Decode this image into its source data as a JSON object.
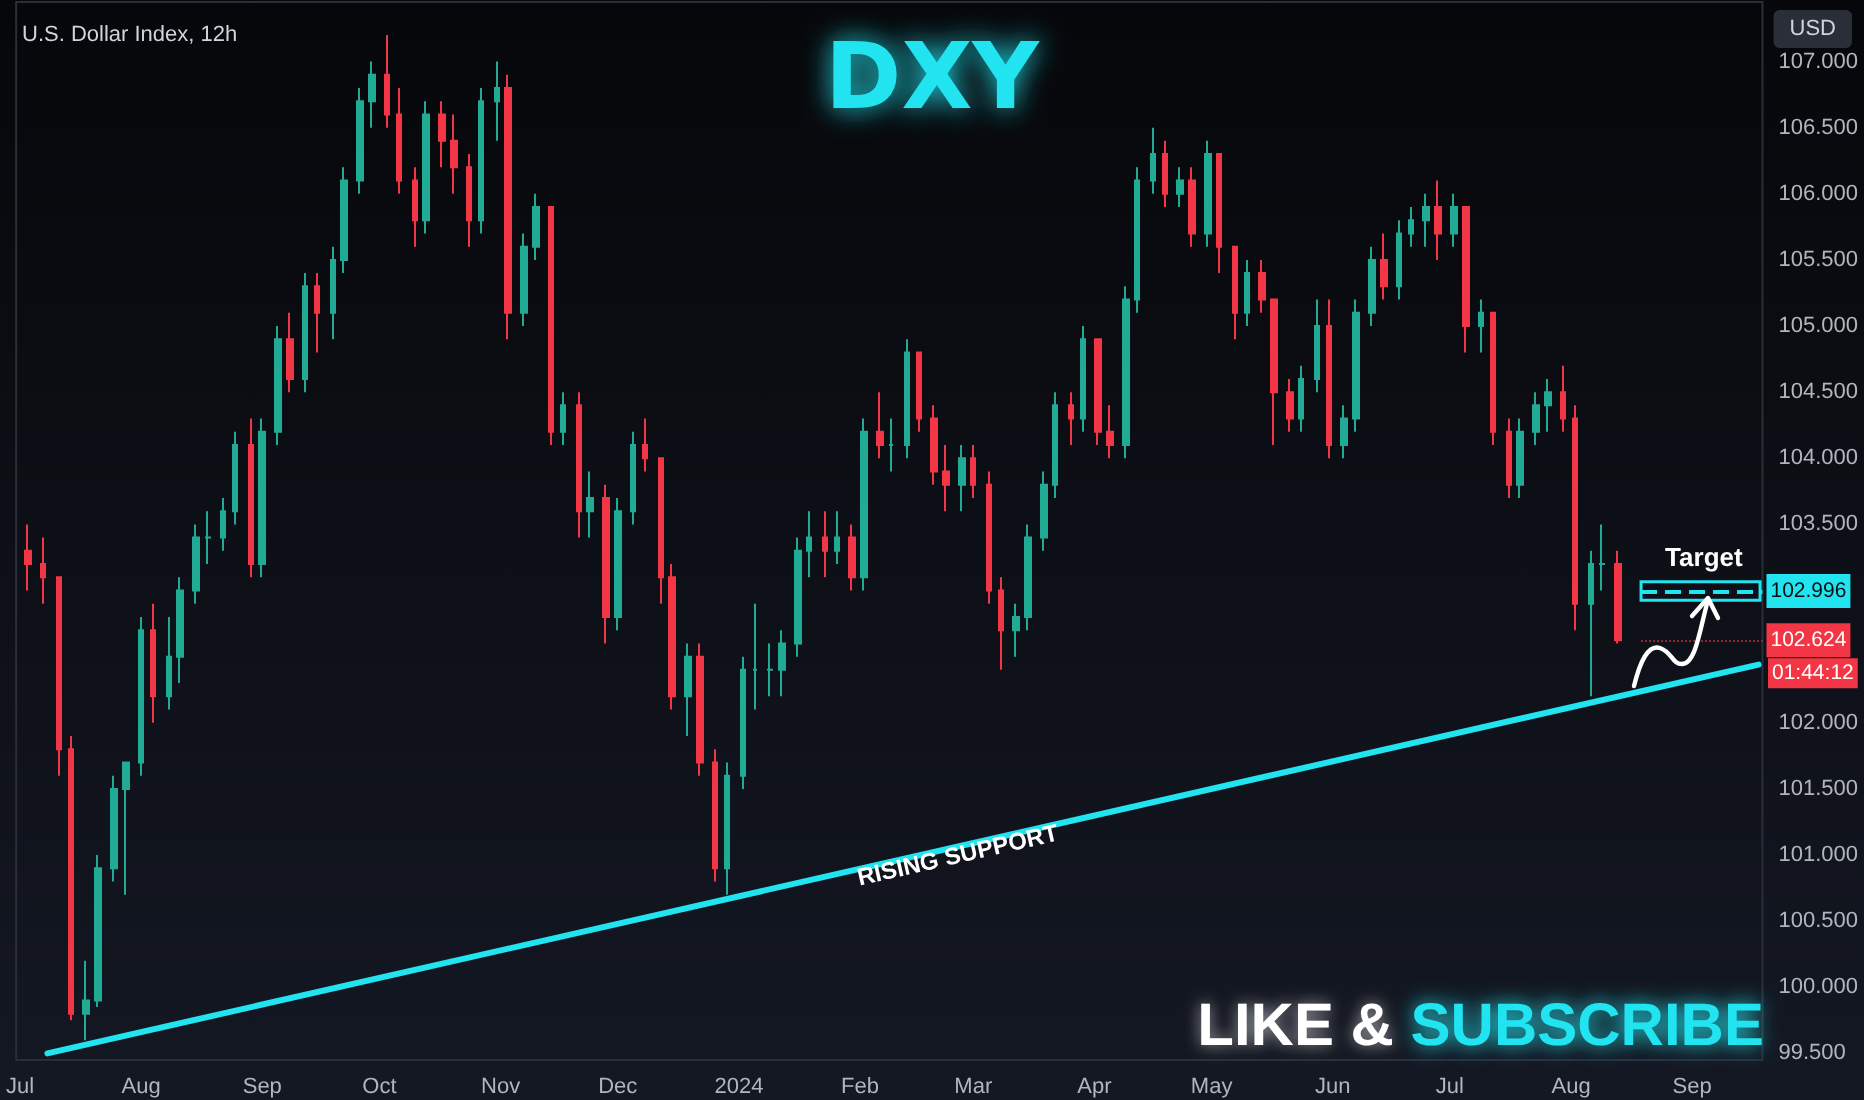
{
  "chart_data": {
    "type": "candlestick",
    "title": "DXY",
    "subtitle": "U.S. Dollar Index, 12h",
    "colors": [
      "#f23645",
      "#f23645",
      "#f23645",
      "#f23645",
      "#22ab94",
      "#22ab94",
      "#22ab94",
      "#22ab94",
      "#22ab94",
      "#f23645",
      "#22ab94",
      "#22ab94",
      "#22ab94",
      "#22ab94",
      "#22ab94",
      "#22ab94",
      "#f23645",
      "#22ab94",
      "#22ab94",
      "#f23645",
      "#22ab94",
      "#f23645",
      "#22ab94",
      "#22ab94",
      "#22ab94",
      "#22ab94",
      "#f23645",
      "#f23645",
      "#f23645",
      "#22ab94",
      "#f23645",
      "#f23645",
      "#f23645",
      "#22ab94",
      "#22ab94",
      "#f23645",
      "#22ab94",
      "#22ab94",
      "#f23645",
      "#22ab94",
      "#f23645",
      "#22ab94",
      "#f23645",
      "#22ab94",
      "#22ab94",
      "#f23645",
      "#f23645",
      "#f23645",
      "#22ab94",
      "#f23645",
      "#f23645",
      "#22ab94",
      "#22ab94",
      "#22ab94",
      "#22ab94",
      "#22ab94",
      "#22ab94",
      "#22ab94",
      "#f23645",
      "#22ab94",
      "#f23645",
      "#22ab94",
      "#f23645",
      "#22ab94",
      "#22ab94",
      "#f23645",
      "#f23645",
      "#f23645",
      "#22ab94",
      "#f23645",
      "#f23645",
      "#f23645",
      "#22ab94",
      "#22ab94",
      "#22ab94",
      "#22ab94",
      "#f23645",
      "#22ab94",
      "#f23645",
      "#f23645",
      "#22ab94",
      "#22ab94",
      "#22ab94",
      "#f23645",
      "#22ab94",
      "#f23645",
      "#22ab94",
      "#f23645",
      "#f23645",
      "#22ab94",
      "#f23645",
      "#f23645",
      "#f23645",
      "#22ab94",
      "#22ab94",
      "#f23645",
      "#22ab94",
      "#22ab94",
      "#22ab94",
      "#f23645",
      "#22ab94",
      "#22ab94",
      "#22ab94",
      "#f23645",
      "#22ab94",
      "#f23645",
      "#22ab94",
      "#f23645",
      "#f23645",
      "#22ab94",
      "#22ab94",
      "#22ab94",
      "#f23645",
      "#f23645",
      "#22ab94",
      "#22ab94",
      "#f23645"
    ],
    "x": [
      "2023-07-03",
      "2023-07-07",
      "2023-07-11",
      "2023-07-14",
      "2023-07-18",
      "2023-07-21",
      "2023-07-25",
      "2023-07-28",
      "2023-08-01",
      "2023-08-04",
      "2023-08-08",
      "2023-08-11",
      "2023-08-15",
      "2023-08-18",
      "2023-08-22",
      "2023-08-25",
      "2023-08-29",
      "2023-09-01",
      "2023-09-05",
      "2023-09-08",
      "2023-09-12",
      "2023-09-15",
      "2023-09-19",
      "2023-09-22",
      "2023-09-26",
      "2023-09-29",
      "2023-10-03",
      "2023-10-06",
      "2023-10-10",
      "2023-10-13",
      "2023-10-17",
      "2023-10-20",
      "2023-10-24",
      "2023-10-27",
      "2023-10-31",
      "2023-11-03",
      "2023-11-07",
      "2023-11-10",
      "2023-11-14",
      "2023-11-17",
      "2023-11-21",
      "2023-11-24",
      "2023-11-28",
      "2023-12-01",
      "2023-12-05",
      "2023-12-08",
      "2023-12-12",
      "2023-12-15",
      "2023-12-19",
      "2023-12-22",
      "2023-12-26",
      "2023-12-29",
      "2024-01-02",
      "2024-01-05",
      "2024-01-09",
      "2024-01-12",
      "2024-01-16",
      "2024-01-19",
      "2024-01-23",
      "2024-01-26",
      "2024-01-30",
      "2024-02-02",
      "2024-02-06",
      "2024-02-09",
      "2024-02-13",
      "2024-02-16",
      "2024-02-20",
      "2024-02-23",
      "2024-02-27",
      "2024-03-01",
      "2024-03-05",
      "2024-03-08",
      "2024-03-12",
      "2024-03-15",
      "2024-03-19",
      "2024-03-22",
      "2024-03-26",
      "2024-03-29",
      "2024-04-02",
      "2024-04-05",
      "2024-04-09",
      "2024-04-12",
      "2024-04-16",
      "2024-04-19",
      "2024-04-23",
      "2024-04-26",
      "2024-04-30",
      "2024-05-03",
      "2024-05-07",
      "2024-05-10",
      "2024-05-14",
      "2024-05-17",
      "2024-05-21",
      "2024-05-24",
      "2024-05-28",
      "2024-05-31",
      "2024-06-04",
      "2024-06-07",
      "2024-06-11",
      "2024-06-14",
      "2024-06-18",
      "2024-06-21",
      "2024-06-25",
      "2024-06-28",
      "2024-07-02",
      "2024-07-05",
      "2024-07-09",
      "2024-07-12",
      "2024-07-16",
      "2024-07-19",
      "2024-07-23",
      "2024-07-26",
      "2024-07-30",
      "2024-08-02",
      "2024-08-06",
      "2024-08-09",
      "2024-08-13"
    ],
    "ohlc": [
      [
        103.3,
        103.5,
        103.0,
        103.2
      ],
      [
        103.2,
        103.4,
        102.9,
        103.1
      ],
      [
        103.1,
        103.1,
        101.6,
        101.8
      ],
      [
        101.8,
        101.9,
        99.75,
        99.8
      ],
      [
        99.8,
        100.2,
        99.6,
        99.9
      ],
      [
        99.9,
        101.0,
        99.85,
        100.9
      ],
      [
        100.9,
        101.6,
        100.8,
        101.5
      ],
      [
        101.5,
        101.7,
        100.7,
        101.7
      ],
      [
        101.7,
        102.8,
        101.6,
        102.7
      ],
      [
        102.7,
        102.9,
        102.0,
        102.2
      ],
      [
        102.2,
        102.8,
        102.1,
        102.5
      ],
      [
        102.5,
        103.1,
        102.3,
        103.0
      ],
      [
        103.0,
        103.5,
        102.9,
        103.4
      ],
      [
        103.4,
        103.6,
        103.2,
        103.4
      ],
      [
        103.4,
        103.7,
        103.3,
        103.6
      ],
      [
        103.6,
        104.2,
        103.5,
        104.1
      ],
      [
        104.1,
        104.3,
        103.1,
        103.2
      ],
      [
        103.2,
        104.3,
        103.1,
        104.2
      ],
      [
        104.2,
        105.0,
        104.1,
        104.9
      ],
      [
        104.9,
        105.1,
        104.5,
        104.6
      ],
      [
        104.6,
        105.4,
        104.5,
        105.3
      ],
      [
        105.3,
        105.4,
        104.8,
        105.1
      ],
      [
        105.1,
        105.6,
        104.9,
        105.5
      ],
      [
        105.5,
        106.2,
        105.4,
        106.1
      ],
      [
        106.1,
        106.8,
        106.0,
        106.7
      ],
      [
        106.7,
        107.0,
        106.5,
        106.9
      ],
      [
        106.9,
        107.2,
        106.5,
        106.6
      ],
      [
        106.6,
        106.8,
        106.0,
        106.1
      ],
      [
        106.1,
        106.2,
        105.6,
        105.8
      ],
      [
        105.8,
        106.7,
        105.7,
        106.6
      ],
      [
        106.6,
        106.7,
        106.2,
        106.4
      ],
      [
        106.4,
        106.6,
        106.0,
        106.2
      ],
      [
        106.2,
        106.3,
        105.6,
        105.8
      ],
      [
        105.8,
        106.8,
        105.7,
        106.7
      ],
      [
        106.7,
        107.0,
        106.4,
        106.8
      ],
      [
        106.8,
        106.9,
        104.9,
        105.1
      ],
      [
        105.1,
        105.7,
        105.0,
        105.6
      ],
      [
        105.6,
        106.0,
        105.5,
        105.9
      ],
      [
        105.9,
        105.9,
        104.1,
        104.2
      ],
      [
        104.2,
        104.5,
        104.1,
        104.4
      ],
      [
        104.4,
        104.5,
        103.4,
        103.6
      ],
      [
        103.6,
        103.9,
        103.4,
        103.7
      ],
      [
        103.7,
        103.8,
        102.6,
        102.8
      ],
      [
        102.8,
        103.7,
        102.7,
        103.6
      ],
      [
        103.6,
        104.2,
        103.5,
        104.1
      ],
      [
        104.1,
        104.3,
        103.9,
        104.0
      ],
      [
        104.0,
        104.0,
        102.9,
        103.1
      ],
      [
        103.1,
        103.2,
        102.1,
        102.2
      ],
      [
        102.2,
        102.6,
        101.9,
        102.5
      ],
      [
        102.5,
        102.6,
        101.6,
        101.7
      ],
      [
        101.7,
        101.8,
        100.8,
        100.9
      ],
      [
        100.9,
        101.7,
        100.7,
        101.6
      ],
      [
        101.6,
        102.5,
        101.5,
        102.4
      ],
      [
        102.4,
        102.9,
        102.1,
        102.4
      ],
      [
        102.4,
        102.6,
        102.2,
        102.4
      ],
      [
        102.4,
        102.7,
        102.2,
        102.6
      ],
      [
        102.6,
        103.4,
        102.5,
        103.3
      ],
      [
        103.3,
        103.6,
        103.1,
        103.4
      ],
      [
        103.4,
        103.6,
        103.1,
        103.3
      ],
      [
        103.3,
        103.6,
        103.2,
        103.4
      ],
      [
        103.4,
        103.5,
        103.0,
        103.1
      ],
      [
        103.1,
        104.3,
        103.0,
        104.2
      ],
      [
        104.2,
        104.5,
        104.0,
        104.1
      ],
      [
        104.1,
        104.3,
        103.9,
        104.1
      ],
      [
        104.1,
        104.9,
        104.0,
        104.8
      ],
      [
        104.8,
        104.8,
        104.2,
        104.3
      ],
      [
        104.3,
        104.4,
        103.8,
        103.9
      ],
      [
        103.9,
        104.1,
        103.6,
        103.8
      ],
      [
        103.8,
        104.1,
        103.6,
        104.0
      ],
      [
        104.0,
        104.1,
        103.7,
        103.8
      ],
      [
        103.8,
        103.9,
        102.9,
        103.0
      ],
      [
        103.0,
        103.1,
        102.4,
        102.7
      ],
      [
        102.7,
        102.9,
        102.5,
        102.8
      ],
      [
        102.8,
        103.5,
        102.7,
        103.4
      ],
      [
        103.4,
        103.9,
        103.3,
        103.8
      ],
      [
        103.8,
        104.5,
        103.7,
        104.4
      ],
      [
        104.4,
        104.5,
        104.1,
        104.3
      ],
      [
        104.3,
        105.0,
        104.2,
        104.9
      ],
      [
        104.9,
        104.9,
        104.1,
        104.2
      ],
      [
        104.2,
        104.4,
        104.0,
        104.1
      ],
      [
        104.1,
        105.3,
        104.0,
        105.2
      ],
      [
        105.2,
        106.2,
        105.1,
        106.1
      ],
      [
        106.1,
        106.5,
        106.0,
        106.3
      ],
      [
        106.3,
        106.4,
        105.9,
        106.0
      ],
      [
        106.0,
        106.2,
        105.9,
        106.1
      ],
      [
        106.1,
        106.2,
        105.6,
        105.7
      ],
      [
        105.7,
        106.4,
        105.6,
        106.3
      ],
      [
        106.3,
        106.3,
        105.4,
        105.6
      ],
      [
        105.6,
        105.6,
        104.9,
        105.1
      ],
      [
        105.1,
        105.5,
        105.0,
        105.4
      ],
      [
        105.4,
        105.5,
        105.1,
        105.2
      ],
      [
        105.2,
        105.2,
        104.1,
        104.5
      ],
      [
        104.5,
        104.6,
        104.2,
        104.3
      ],
      [
        104.3,
        104.7,
        104.2,
        104.6
      ],
      [
        104.6,
        105.2,
        104.5,
        105.0
      ],
      [
        105.0,
        105.2,
        104.0,
        104.1
      ],
      [
        104.1,
        104.4,
        104.0,
        104.3
      ],
      [
        104.3,
        105.2,
        104.2,
        105.1
      ],
      [
        105.1,
        105.6,
        105.0,
        105.5
      ],
      [
        105.5,
        105.7,
        105.2,
        105.3
      ],
      [
        105.3,
        105.8,
        105.2,
        105.7
      ],
      [
        105.7,
        105.9,
        105.6,
        105.8
      ],
      [
        105.8,
        106.0,
        105.6,
        105.9
      ],
      [
        105.9,
        106.1,
        105.5,
        105.7
      ],
      [
        105.7,
        106.0,
        105.6,
        105.9
      ],
      [
        105.9,
        105.9,
        104.8,
        105.0
      ],
      [
        105.0,
        105.2,
        104.8,
        105.1
      ],
      [
        105.1,
        105.1,
        104.1,
        104.2
      ],
      [
        104.2,
        104.3,
        103.7,
        103.8
      ],
      [
        103.8,
        104.3,
        103.7,
        104.2
      ],
      [
        104.2,
        104.5,
        104.1,
        104.4
      ],
      [
        104.4,
        104.6,
        104.2,
        104.5
      ],
      [
        104.5,
        104.7,
        104.2,
        104.3
      ],
      [
        104.3,
        104.4,
        102.7,
        102.9
      ],
      [
        102.9,
        103.3,
        102.2,
        103.2
      ],
      [
        103.2,
        103.5,
        103.0,
        103.2
      ],
      [
        103.2,
        103.3,
        102.6,
        102.624
      ]
    ],
    "series": [
      {
        "type": "line",
        "color": "#22e4f0",
        "x": [
          "2023-07-08",
          "2024-09-18"
        ],
        "values": [
          99.5,
          102.44
        ]
      }
    ],
    "xlim": [
      "2023-06-30",
      "2024-09-19"
    ],
    "xticks": [
      {
        "value": "2023-07-01",
        "label": "Jul"
      },
      {
        "value": "2023-08-01",
        "label": "Aug"
      },
      {
        "value": "2023-09-01",
        "label": "Sep"
      },
      {
        "value": "2023-10-01",
        "label": "Oct"
      },
      {
        "value": "2023-11-01",
        "label": "Nov"
      },
      {
        "value": "2023-12-01",
        "label": "Dec"
      },
      {
        "value": "2024-01-01",
        "label": "2024"
      },
      {
        "value": "2024-02-01",
        "label": "Feb"
      },
      {
        "value": "2024-03-01",
        "label": "Mar"
      },
      {
        "value": "2024-04-01",
        "label": "Apr"
      },
      {
        "value": "2024-05-01",
        "label": "May"
      },
      {
        "value": "2024-06-01",
        "label": "Jun"
      },
      {
        "value": "2024-07-01",
        "label": "Jul"
      },
      {
        "value": "2024-08-01",
        "label": "Aug"
      },
      {
        "value": "2024-09-01",
        "label": "Sep"
      }
    ],
    "ylim": [
      99.45,
      107.45
    ],
    "yticks": [
      {
        "value": 99.5,
        "label": "99.500"
      },
      {
        "value": 100,
        "label": "100.000"
      },
      {
        "value": 100.5,
        "label": "100.500"
      },
      {
        "value": 101,
        "label": "101.000"
      },
      {
        "value": 101.5,
        "label": "101.500"
      },
      {
        "value": 102,
        "label": "102.000"
      },
      {
        "value": 103.5,
        "label": "103.500"
      },
      {
        "value": 104,
        "label": "104.000"
      },
      {
        "value": 104.5,
        "label": "104.500"
      },
      {
        "value": 105,
        "label": "105.000"
      },
      {
        "value": 105.5,
        "label": "105.500"
      },
      {
        "value": 106,
        "label": "106.000"
      },
      {
        "value": 106.5,
        "label": "106.500"
      },
      {
        "value": 107,
        "label": "107.000"
      }
    ],
    "ref_lines": [
      {
        "axis": "y",
        "value": 102.996,
        "label": "102.996",
        "color": "#22e4f0",
        "line_style": "dashed"
      },
      {
        "axis": "y",
        "value": 102.624,
        "label": "102.624",
        "color": "#f23645",
        "line_style": "dotted"
      }
    ],
    "annotations": [
      {
        "text": "RISING SUPPORT",
        "x": "2024-02-26",
        "y": 101.0
      },
      "LIKE & SUBSCRIBE",
      "USD",
      "01:44:12",
      {
        "text": "Target",
        "x": "2024-09-04",
        "y": 102.996
      }
    ],
    "grid": false
  }
}
